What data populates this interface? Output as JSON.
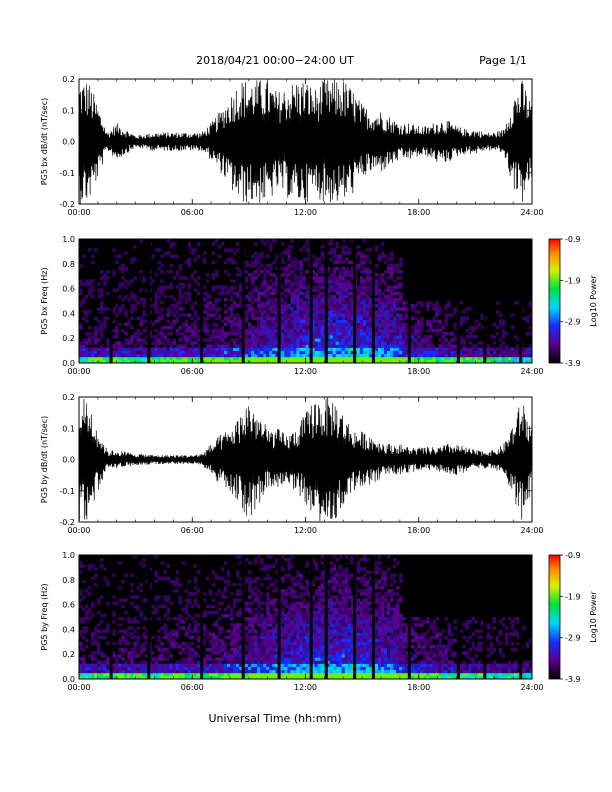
{
  "header": {
    "title": "2018/04/21   00:00−24:00 UT",
    "page": "Page 1/1"
  },
  "xlabel": "Universal Time (hh:mm)",
  "chart_data": [
    {
      "type": "line",
      "ylabel": "PG5 bx dB/dt (nT/sec)",
      "xlim": [
        0,
        24
      ],
      "ylim": [
        -0.2,
        0.2
      ],
      "x_ticks": [
        "00:00",
        "06:00",
        "12:00",
        "18:00",
        "24:00"
      ],
      "y_ticks": [
        "-0.2",
        "-0.1",
        "0.0",
        "0.1",
        "0.2"
      ],
      "envelope": {
        "x": [
          0,
          0.5,
          1.0,
          1.5,
          2.0,
          3,
          4,
          5,
          6,
          6.5,
          7,
          7.5,
          8,
          8.5,
          9,
          9.5,
          10,
          10.5,
          11,
          11.5,
          12,
          12.5,
          13,
          13.5,
          14,
          14.5,
          15,
          15.5,
          16,
          16.5,
          17,
          17.5,
          18,
          18.5,
          19,
          19.5,
          20,
          20.5,
          21,
          21.5,
          22,
          22.5,
          23,
          23.5,
          24
        ],
        "amplitude": [
          0.2,
          0.2,
          0.12,
          0.03,
          0.06,
          0.02,
          0.03,
          0.03,
          0.03,
          0.03,
          0.06,
          0.1,
          0.15,
          0.2,
          0.2,
          0.2,
          0.2,
          0.16,
          0.18,
          0.2,
          0.2,
          0.17,
          0.2,
          0.2,
          0.2,
          0.17,
          0.12,
          0.1,
          0.1,
          0.08,
          0.06,
          0.06,
          0.05,
          0.05,
          0.07,
          0.07,
          0.05,
          0.04,
          0.04,
          0.03,
          0.03,
          0.04,
          0.15,
          0.2,
          0.12
        ]
      }
    },
    {
      "type": "heatmap",
      "ylabel": "PG5 bx Freq (Hz)",
      "xlim": [
        0,
        24
      ],
      "ylim": [
        0,
        1.0
      ],
      "x_ticks": [
        "00:00",
        "06:00",
        "12:00",
        "18:00",
        "24:00"
      ],
      "y_ticks": [
        "0.0",
        "0.2",
        "0.4",
        "0.6",
        "0.8",
        "1.0"
      ],
      "colorbar": {
        "label": "Log10 Power",
        "ticks": [
          "-0.9",
          "-1.9",
          "-2.9",
          "-3.9"
        ],
        "range": [
          -3.9,
          -0.9
        ]
      },
      "data_gaps_hours": [
        1.7,
        3.7,
        6.5,
        8.7,
        10.6,
        12.3,
        13.1,
        14.6,
        15.6,
        17.5,
        20.1,
        21.5,
        23.4
      ]
    },
    {
      "type": "line",
      "ylabel": "PG5 by dB/dt (nT/sec)",
      "xlim": [
        0,
        24
      ],
      "ylim": [
        -0.2,
        0.2
      ],
      "x_ticks": [
        "00:00",
        "06:00",
        "12:00",
        "18:00",
        "24:00"
      ],
      "y_ticks": [
        "-0.2",
        "-0.1",
        "0.0",
        "0.1",
        "0.2"
      ],
      "envelope": {
        "x": [
          0,
          0.5,
          1.0,
          1.5,
          2.0,
          3,
          4,
          5,
          6,
          6.5,
          7,
          7.5,
          8,
          8.5,
          9,
          9.5,
          10,
          10.5,
          11,
          11.5,
          12,
          12.5,
          13,
          13.5,
          14,
          14.5,
          15,
          15.5,
          16,
          16.5,
          17,
          17.5,
          18,
          18.5,
          19,
          19.5,
          20,
          20.5,
          21,
          21.5,
          22,
          22.5,
          23,
          23.5,
          24
        ],
        "amplitude": [
          0.2,
          0.2,
          0.1,
          0.03,
          0.03,
          0.02,
          0.015,
          0.015,
          0.015,
          0.02,
          0.05,
          0.08,
          0.1,
          0.14,
          0.2,
          0.15,
          0.1,
          0.1,
          0.08,
          0.1,
          0.15,
          0.2,
          0.2,
          0.2,
          0.15,
          0.1,
          0.09,
          0.08,
          0.06,
          0.05,
          0.05,
          0.04,
          0.04,
          0.04,
          0.04,
          0.05,
          0.05,
          0.04,
          0.03,
          0.03,
          0.03,
          0.05,
          0.12,
          0.2,
          0.1
        ]
      }
    },
    {
      "type": "heatmap",
      "ylabel": "PG5 by Freq (Hz)",
      "xlim": [
        0,
        24
      ],
      "ylim": [
        0,
        1.0
      ],
      "x_ticks": [
        "00:00",
        "06:00",
        "12:00",
        "18:00",
        "24:00"
      ],
      "y_ticks": [
        "0.0",
        "0.2",
        "0.4",
        "0.6",
        "0.8",
        "1.0"
      ],
      "colorbar": {
        "label": "Log10 Power",
        "ticks": [
          "-0.9",
          "-1.9",
          "-2.9",
          "-3.9"
        ],
        "range": [
          -3.9,
          -0.9
        ]
      },
      "data_gaps_hours": [
        1.7,
        3.7,
        6.5,
        8.7,
        10.6,
        12.3,
        13.1,
        14.6,
        15.6,
        17.5,
        20.1,
        21.5,
        23.4
      ]
    }
  ]
}
